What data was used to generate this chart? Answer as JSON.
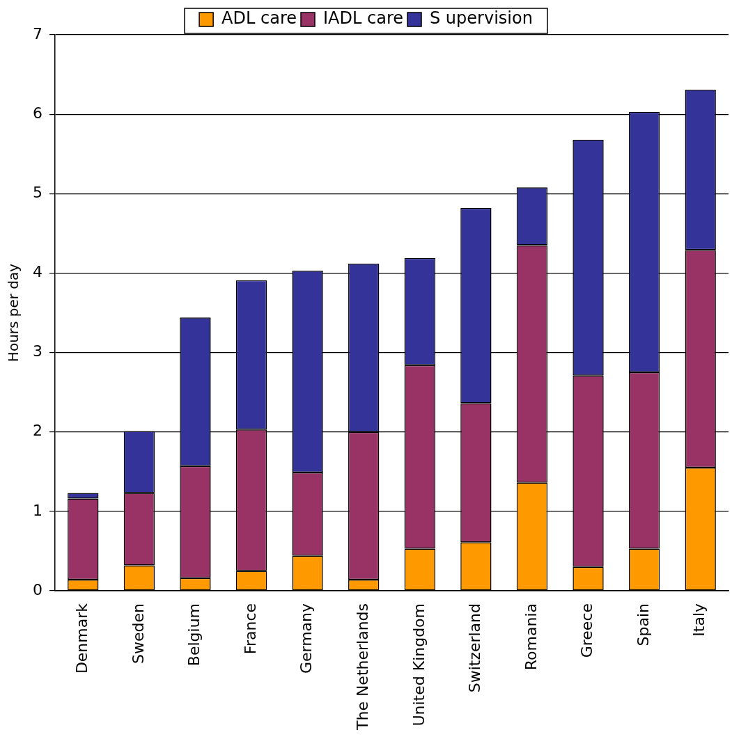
{
  "chart_data": {
    "type": "bar",
    "stacked": true,
    "ylabel": "Hours per day",
    "categories": [
      "Denmark",
      "Sweden",
      "Belgium",
      "France",
      "Germany",
      "The Netherlands",
      "United Kingdom",
      "Switzerland",
      "Romania",
      "Greece",
      "Spain",
      "Italy"
    ],
    "series": [
      {
        "name": "ADL care",
        "color": "#ff9900",
        "values": [
          0.14,
          0.32,
          0.16,
          0.25,
          0.44,
          0.14,
          0.53,
          0.61,
          1.36,
          0.3,
          0.53,
          1.55
        ]
      },
      {
        "name": "IADL care",
        "color": "#993366",
        "values": [
          1.02,
          0.91,
          1.41,
          1.78,
          1.05,
          1.86,
          2.31,
          1.75,
          2.99,
          2.41,
          2.22,
          2.74
        ]
      },
      {
        "name": "S upervision",
        "color": "#333399",
        "values": [
          0.07,
          0.78,
          1.87,
          1.88,
          2.54,
          2.12,
          1.35,
          2.46,
          0.73,
          2.97,
          3.28,
          2.02
        ]
      }
    ],
    "ylim": [
      0,
      7
    ],
    "yticks": [
      0,
      1,
      2,
      3,
      4,
      5,
      6,
      7
    ],
    "grid": "y",
    "legend": "top"
  }
}
